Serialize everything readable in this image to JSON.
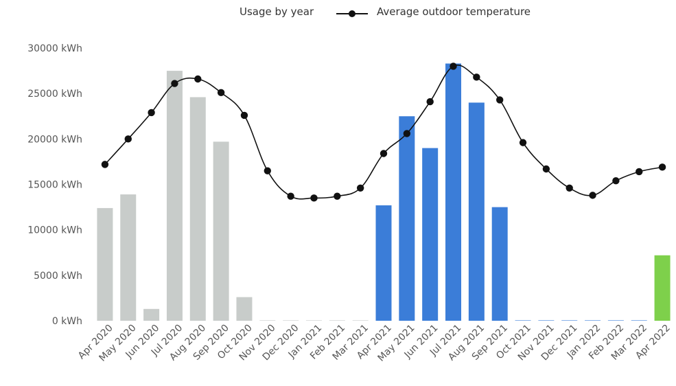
{
  "chart_data": {
    "type": "bar",
    "categories": [
      "Apr 2020",
      "May 2020",
      "Jun 2020",
      "Jul 2020",
      "Aug 2020",
      "Sep 2020",
      "Oct 2020",
      "Nov 2020",
      "Dec 2020",
      "Jan 2021",
      "Feb 2021",
      "Mar 2021",
      "Apr 2021",
      "May 2021",
      "Jun 2021",
      "Jul 2021",
      "Aug 2021",
      "Sep 2021",
      "Oct 2021",
      "Nov 2021",
      "Dec 2021",
      "Jan 2022",
      "Feb 2022",
      "Mar 2022",
      "Apr 2022"
    ],
    "usage_kwh": [
      12400,
      13900,
      1300,
      27500,
      24600,
      19700,
      2600,
      0,
      0,
      0,
      0,
      0,
      12700,
      22500,
      19000,
      28300,
      24000,
      12500,
      0,
      0,
      0,
      0,
      0,
      0,
      7200
    ],
    "bar_year": [
      2020,
      2020,
      2020,
      2020,
      2020,
      2020,
      2020,
      2020,
      2020,
      2020,
      2020,
      2020,
      2021,
      2021,
      2021,
      2021,
      2021,
      2021,
      2021,
      2021,
      2021,
      2021,
      2021,
      2021,
      2022
    ],
    "year_colors": {
      "2020": "#c8ccca",
      "2021": "#3b7dd8",
      "2022": "#7ed04b"
    },
    "temperature_series": {
      "name": "Average outdoor temperature",
      "values": [
        17200,
        20000,
        22900,
        26100,
        26600,
        25100,
        22600,
        16500,
        13700,
        13500,
        13700,
        14600,
        18400,
        20600,
        24100,
        28000,
        26800,
        24300,
        19600,
        16700,
        14600,
        13800,
        15400,
        16400,
        16900
      ],
      "color": "#111111"
    },
    "legend": {
      "usage_label": "Usage by year",
      "temp_label": "Average outdoor temperature",
      "position": "top-center"
    },
    "yticks": [
      "0 kWh",
      "5000 kWh",
      "10000 kWh",
      "15000 kWh",
      "20000 kWh",
      "25000 kWh",
      "30000 kWh"
    ],
    "ytick_values": [
      0,
      5000,
      10000,
      15000,
      20000,
      25000,
      30000
    ],
    "ylim": [
      0,
      30000
    ],
    "grid": false
  }
}
